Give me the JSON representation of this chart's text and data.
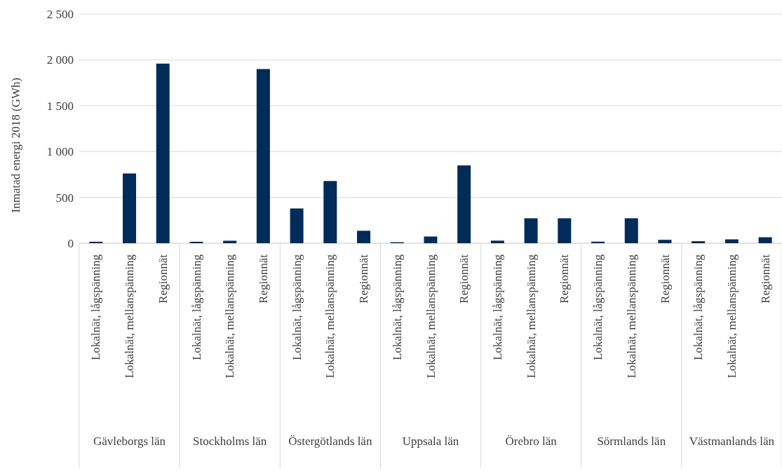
{
  "chart_data": {
    "type": "bar",
    "ylabel": "Inmatad energi 2018 (GWh)",
    "categories": [
      "Lokalnät, lågspänning",
      "Lokalnät, mellanspänning",
      "Regionnät",
      "Lokalnät, lågspänning",
      "Lokalnät, mellanspänning",
      "Regionnät",
      "Lokalnät, lågspänning",
      "Lokalnät, mellanspänning",
      "Regionnät",
      "Lokalnät, lågspänning",
      "Lokalnät, mellanspänning",
      "Regionnät",
      "Lokalnät, lågspänning",
      "Lokalnät, mellanspänning",
      "Regionnät",
      "Lokalnät, lågspänning",
      "Lokalnät, mellanspänning",
      "Regionnät",
      "Lokalnät, lågspänning",
      "Lokalnät, mellanspänning",
      "Regionnät"
    ],
    "values": [
      16,
      761,
      1960,
      16,
      27,
      1900,
      379,
      679,
      135,
      11,
      73,
      848,
      28,
      272,
      272,
      17,
      272,
      37,
      22,
      42,
      65
    ],
    "color": "#012b59",
    "annotations": [
      "Gävleborgs län",
      "Stockholms län",
      "Östergötlands län",
      "Uppsala län",
      "Örebro län",
      "Sörmlands län",
      "Västmanlands län"
    ],
    "ylim": [
      0,
      2500
    ],
    "yticks": [
      0,
      500,
      {
        "value": 1000,
        "label": "1 000"
      },
      {
        "value": 1500,
        "label": "1 500"
      },
      {
        "value": 2000,
        "label": "2 000"
      },
      {
        "value": 2500,
        "label": "2 500"
      }
    ],
    "grid": "y"
  }
}
